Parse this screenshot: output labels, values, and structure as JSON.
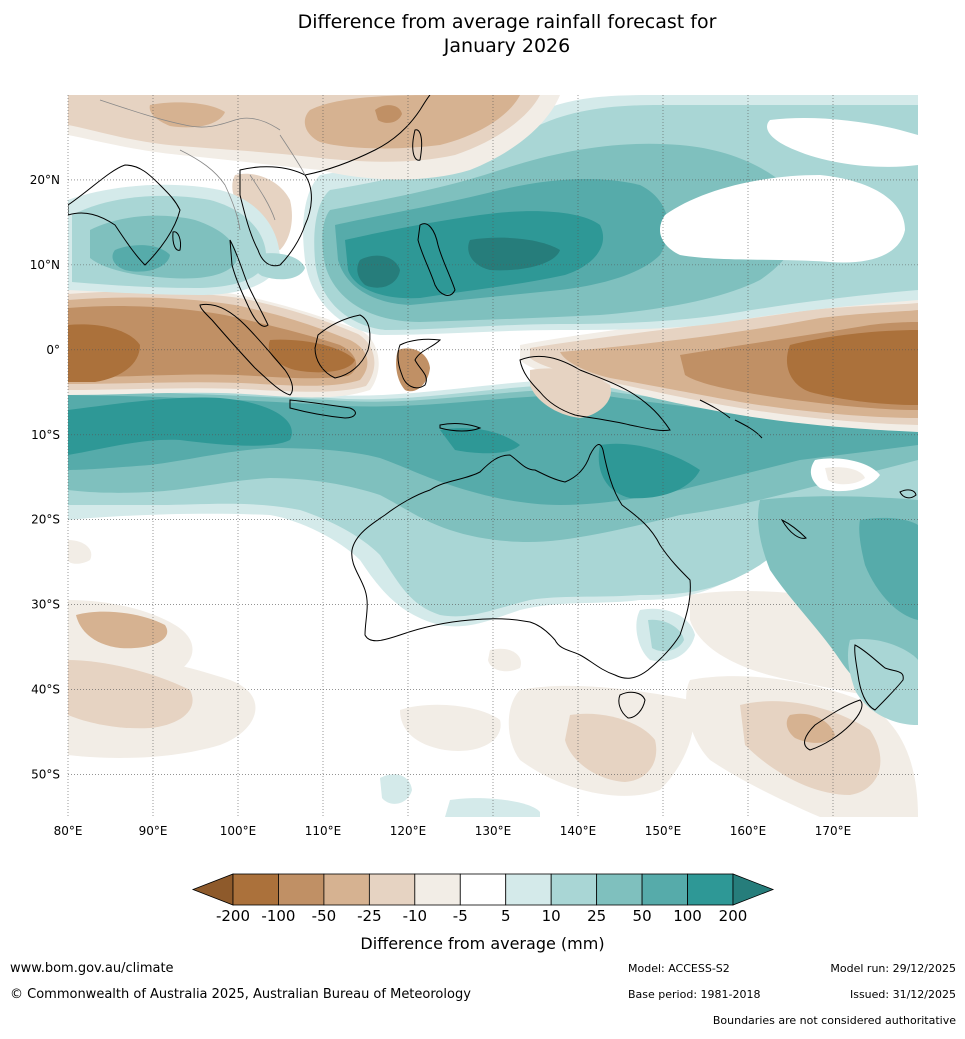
{
  "title_line1": "Difference from average rainfall forecast for",
  "title_line2": "January 2026",
  "map": {
    "lon_min": 80,
    "lon_max": 180,
    "lat_min": -55,
    "lat_max": 30,
    "lat_ticks": [
      {
        "value": 20,
        "label": "20°N"
      },
      {
        "value": 10,
        "label": "10°N"
      },
      {
        "value": 0,
        "label": "0°"
      },
      {
        "value": -10,
        "label": "10°S"
      },
      {
        "value": -20,
        "label": "20°S"
      },
      {
        "value": -30,
        "label": "30°S"
      },
      {
        "value": -40,
        "label": "40°S"
      },
      {
        "value": -50,
        "label": "50°S"
      }
    ],
    "lon_ticks": [
      {
        "value": 80,
        "label": "80°E"
      },
      {
        "value": 90,
        "label": "90°E"
      },
      {
        "value": 100,
        "label": "100°E"
      },
      {
        "value": 110,
        "label": "110°E"
      },
      {
        "value": 120,
        "label": "120°E"
      },
      {
        "value": 130,
        "label": "130°E"
      },
      {
        "value": 140,
        "label": "140°E"
      },
      {
        "value": 150,
        "label": "150°E"
      },
      {
        "value": 160,
        "label": "160°E"
      },
      {
        "value": 170,
        "label": "170°E"
      }
    ]
  },
  "colorbar": {
    "tick_labels": [
      "-200",
      "-100",
      "-50",
      "-25",
      "-10",
      "-5",
      "5",
      "10",
      "25",
      "50",
      "100",
      "200"
    ],
    "colors": [
      "#8e5a2b",
      "#ab713b",
      "#c09065",
      "#d6b291",
      "#e6d3c2",
      "#f2ede6",
      "#ffffff",
      "#d4eaea",
      "#a9d6d5",
      "#7fc0be",
      "#56abaa",
      "#2e9896",
      "#267d7b"
    ],
    "label": "Difference from average (mm)"
  },
  "footer": {
    "url": "www.bom.gov.au/climate",
    "copyright": "© Commonwealth of Australia 2025, Australian Bureau of Meteorology",
    "model": "Model: ACCESS-S2",
    "base_period": "Base period: 1981-2018",
    "model_run": "Model run: 29/12/2025",
    "issued": "Issued: 31/12/2025",
    "disclaimer": "Boundaries are not considered authoritative"
  }
}
